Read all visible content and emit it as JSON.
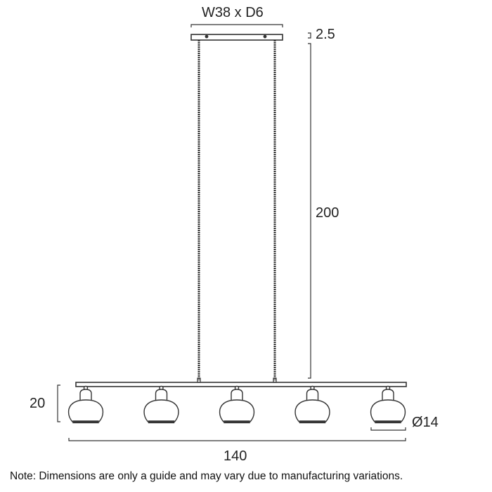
{
  "dimensions": {
    "canopy": "W38 x D6",
    "canopy_height": "2.5",
    "drop": "200",
    "shade_height": "20",
    "shade_diameter": "Ø14",
    "overall_width": "140"
  },
  "note": "Note: Dimensions are only a guide and may vary due to manufacturing variations.",
  "shade_count": 5
}
